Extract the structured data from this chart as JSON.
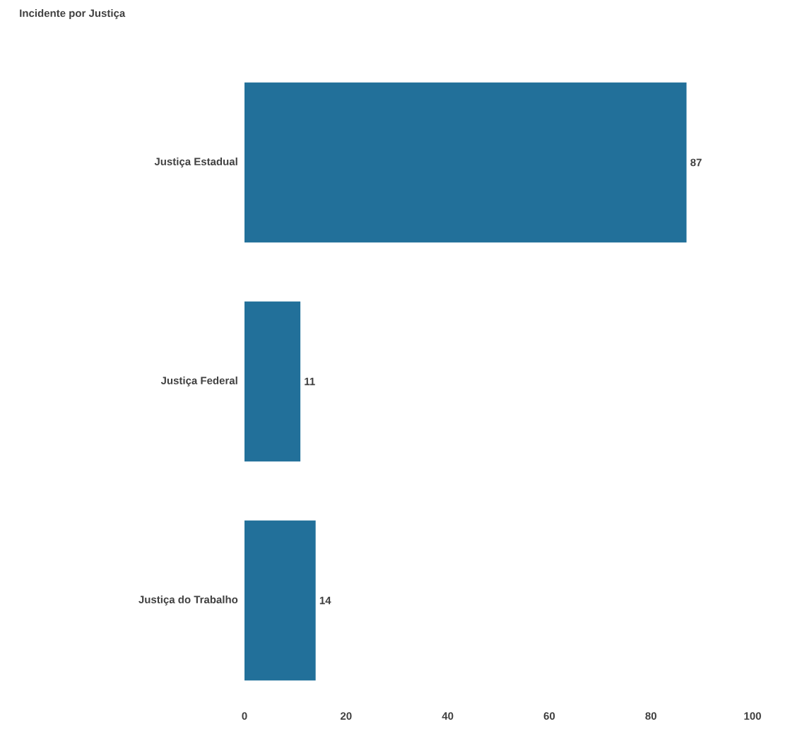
{
  "chart_data": {
    "type": "bar",
    "orientation": "horizontal",
    "title": "Incidente por Justiça",
    "categories": [
      "Justiça Estadual",
      "Justiça Federal",
      "Justiça do Trabalho"
    ],
    "values": [
      87,
      11,
      14
    ],
    "color": "#22709a",
    "xlim": [
      0,
      100
    ],
    "xticks": [
      0,
      20,
      40,
      60,
      80,
      100
    ],
    "data_labels": true
  }
}
